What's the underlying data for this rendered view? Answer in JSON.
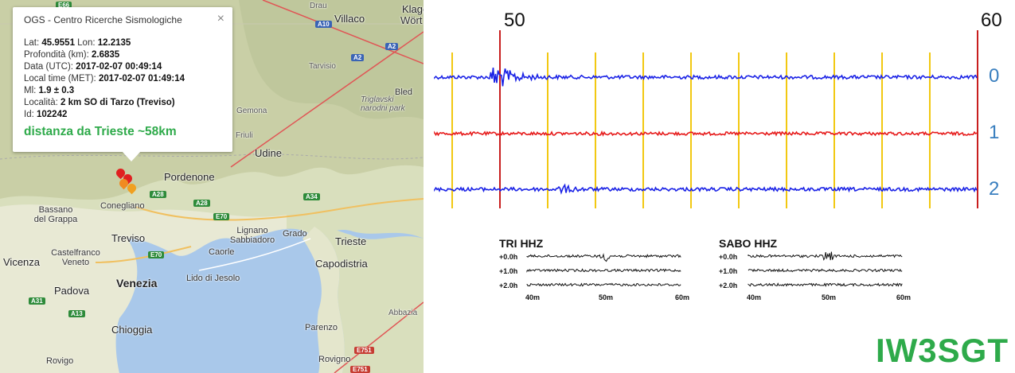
{
  "map": {
    "places": [
      {
        "name": "Villaco",
        "cls": "big"
      },
      {
        "name": "Klagen",
        "cls": "big"
      },
      {
        "name": "Wört",
        "cls": ""
      },
      {
        "name": "Tarvisio",
        "cls": "light"
      },
      {
        "name": "Bled",
        "cls": ""
      },
      {
        "name": "Triglavski narodni park",
        "cls": "light"
      },
      {
        "name": "Gemona",
        "cls": "light"
      },
      {
        "name": "Friuli",
        "cls": "light"
      },
      {
        "name": "Udine",
        "cls": "big"
      },
      {
        "name": "Pordenone",
        "cls": "big"
      },
      {
        "name": "Conegliano",
        "cls": ""
      },
      {
        "name": "Bassano del Grappa",
        "cls": ""
      },
      {
        "name": "Treviso",
        "cls": "big"
      },
      {
        "name": "Castelfranco Veneto",
        "cls": ""
      },
      {
        "name": "Vicenza",
        "cls": "big"
      },
      {
        "name": "Padova",
        "cls": "big"
      },
      {
        "name": "Venezia",
        "cls": "city"
      },
      {
        "name": "Lido di Jesolo",
        "cls": ""
      },
      {
        "name": "Chioggia",
        "cls": "big"
      },
      {
        "name": "Rovigo",
        "cls": ""
      },
      {
        "name": "Caorle",
        "cls": ""
      },
      {
        "name": "Lignano Sabbiadoro",
        "cls": ""
      },
      {
        "name": "Grado",
        "cls": ""
      },
      {
        "name": "Trieste",
        "cls": "big"
      },
      {
        "name": "Capodistria",
        "cls": "big"
      },
      {
        "name": "Parenzo",
        "cls": ""
      },
      {
        "name": "Rovigno",
        "cls": ""
      },
      {
        "name": "Abbazia",
        "cls": "light"
      },
      {
        "name": "Drau",
        "cls": "light"
      }
    ],
    "roads": [
      {
        "label": "A10",
        "color": "blue"
      },
      {
        "label": "A2",
        "color": "blue"
      },
      {
        "label": "A2",
        "color": "blue"
      },
      {
        "label": "A28",
        "color": "green"
      },
      {
        "label": "A28",
        "color": "green"
      },
      {
        "label": "A34",
        "color": "green"
      },
      {
        "label": "E70",
        "color": "green"
      },
      {
        "label": "E70",
        "color": "green"
      },
      {
        "label": "A31",
        "color": "green"
      },
      {
        "label": "A13",
        "color": "green"
      },
      {
        "label": "E751",
        "color": "red"
      },
      {
        "label": "E751",
        "color": "red"
      },
      {
        "label": "E66",
        "color": "green"
      }
    ]
  },
  "popup": {
    "title": "OGS - Centro Ricerche Sismologiche",
    "close": "×",
    "rows": [
      {
        "label": "Lat: ",
        "value": "45.9551",
        "label2": " Lon: ",
        "value2": "12.2135"
      },
      {
        "label": "Profondità (km): ",
        "value": "2.6835"
      },
      {
        "label": "Data (UTC): ",
        "value": "2017-02-07 00:49:14"
      },
      {
        "label": "Local time (MET): ",
        "value": "2017-02-07 01:49:14"
      },
      {
        "label": "Ml: ",
        "value": "1.9 ± 0.3"
      },
      {
        "label": "Località: ",
        "value": "2 km SO di Tarzo (Treviso)"
      },
      {
        "label": "Id: ",
        "value": "102242"
      }
    ],
    "distance": "distanza da Trieste ~58km"
  },
  "seismogram": {
    "time_labels": [
      "50",
      "60"
    ],
    "channel_labels": [
      "0",
      "1",
      "2"
    ],
    "colors": {
      "ch0": "#1a22e6",
      "ch1": "#e61a1a",
      "ch2": "#1a22e6",
      "grid": "#f2c811",
      "marker": "#c81e1e"
    }
  },
  "panels": [
    {
      "title": "TRI HHZ",
      "rows": [
        "+0.0h",
        "+1.0h",
        "+2.0h"
      ],
      "ticks": [
        "40m",
        "50m",
        "60m"
      ]
    },
    {
      "title": "SABO HHZ",
      "rows": [
        "+0.0h",
        "+1.0h",
        "+2.0h"
      ],
      "ticks": [
        "40m",
        "50m",
        "60m"
      ]
    }
  ],
  "callsign": "IW3SGT"
}
